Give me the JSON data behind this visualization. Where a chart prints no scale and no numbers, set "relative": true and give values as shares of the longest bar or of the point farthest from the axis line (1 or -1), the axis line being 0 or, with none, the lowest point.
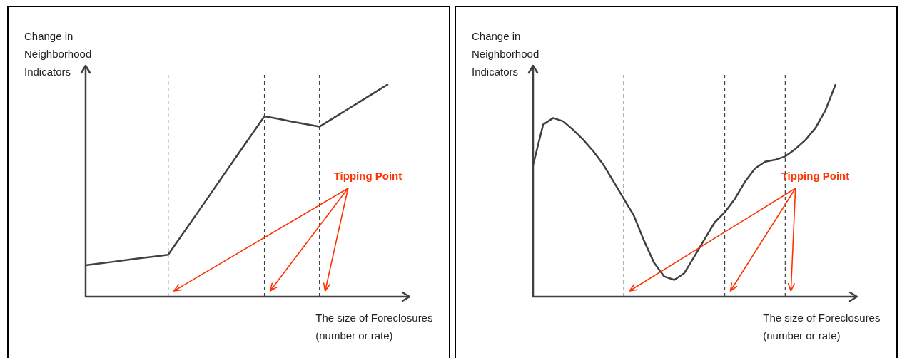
{
  "chart_data": [
    {
      "type": "line",
      "relative": true,
      "categories": [
        null,
        null,
        null,
        null,
        null,
        null,
        null,
        null,
        null,
        null,
        null,
        null,
        null,
        null,
        null,
        null,
        null,
        null,
        null,
        null,
        null,
        null,
        null
      ],
      "tick_labels": false,
      "grid": "x",
      "legend": false,
      "marker": "none",
      "line_style": "solid",
      "series": [
        {
          "color": "#404040",
          "values": [
            0.148,
            0.156,
            0.164,
            0.173,
            0.181,
            0.189,
            0.197,
            0.29,
            0.383,
            0.476,
            0.57,
            0.663,
            0.756,
            0.849,
            0.837,
            0.824,
            0.812,
            0.8,
            0.84,
            0.88,
            0.92,
            0.96,
            1
          ]
        }
      ],
      "ylabel": "Change in Neighborhood Indicators",
      "xlabel": "The size of Foreclosures (number or rate)",
      "annotations": [
        "Tipping Point"
      ]
    },
    {
      "type": "line",
      "relative": true,
      "categories": [
        null,
        null,
        null,
        null,
        null,
        null,
        null,
        null,
        null,
        null,
        null,
        null,
        null,
        null,
        null,
        null,
        null,
        null,
        null,
        null,
        null,
        null,
        null,
        null,
        null,
        null,
        null,
        null,
        null,
        null,
        null
      ],
      "tick_labels": false,
      "grid": "x",
      "legend": false,
      "marker": "none",
      "line_style": "solid",
      "series": [
        {
          "color": "#404040",
          "values": [
            0.619,
            0.81,
            0.841,
            0.825,
            0.784,
            0.737,
            0.683,
            0.619,
            0.54,
            0.46,
            0.381,
            0.263,
            0.159,
            0.095,
            0.079,
            0.111,
            0.19,
            0.27,
            0.349,
            0.397,
            0.46,
            0.54,
            0.603,
            0.635,
            0.644,
            0.66,
            0.695,
            0.737,
            0.794,
            0.879,
            1
          ]
        }
      ],
      "ylabel": "Change in Neighborhood Indicators",
      "xlabel": "The size of Foreclosures (number or rate)",
      "annotations": [
        "Tipping Point"
      ]
    }
  ]
}
